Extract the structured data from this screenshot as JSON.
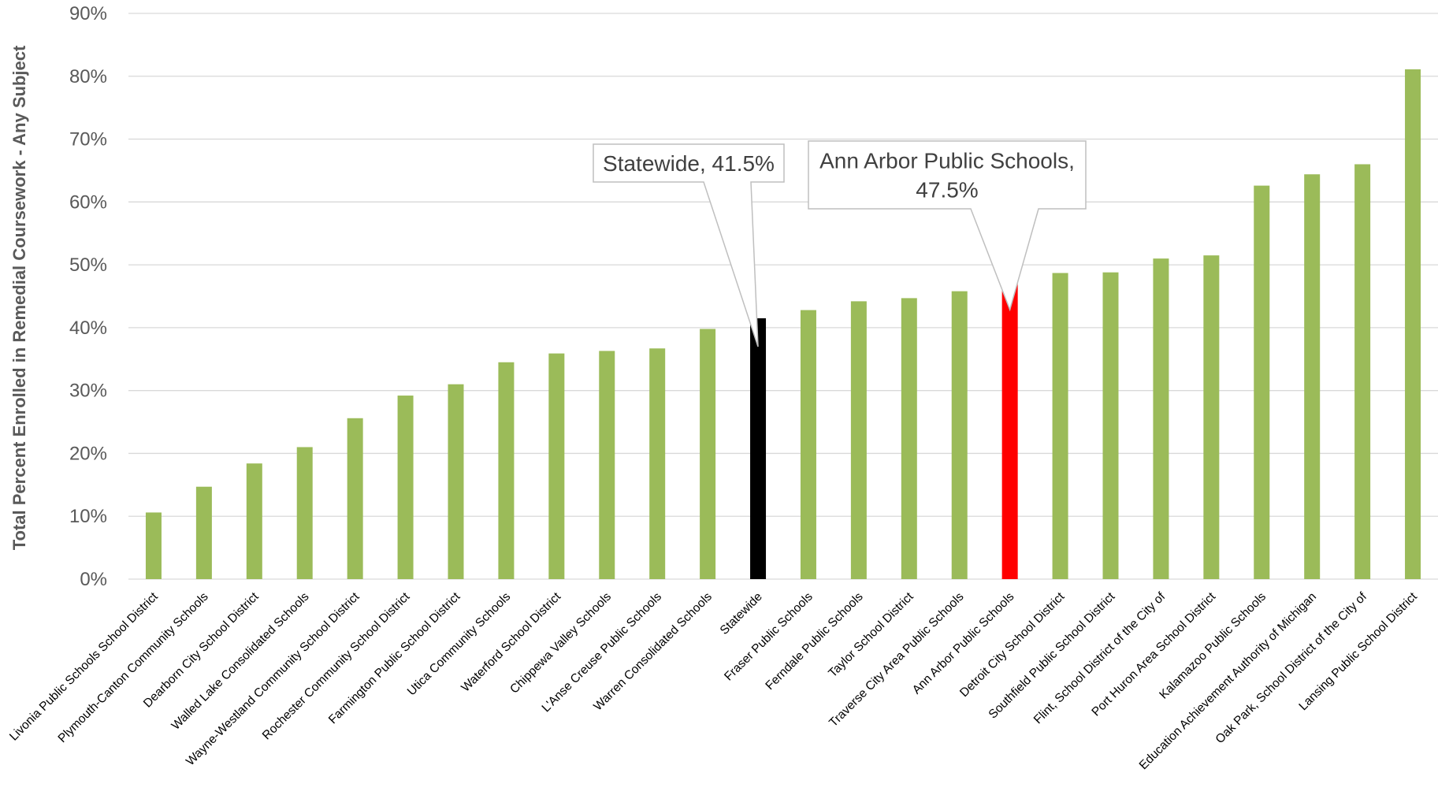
{
  "chart_data": {
    "type": "bar",
    "title": "",
    "xlabel": "",
    "ylabel": "Total Percent Enrolled in Remedial Coursework - Any Subject",
    "ylim": [
      0,
      90
    ],
    "yticks": [
      0,
      10,
      20,
      30,
      40,
      50,
      60,
      70,
      80,
      90
    ],
    "ytick_labels": [
      "0%",
      "10%",
      "20%",
      "30%",
      "40%",
      "50%",
      "60%",
      "70%",
      "80%",
      "90%"
    ],
    "grid": true,
    "legend": "none",
    "categories": [
      "Livonia Public Schools School District",
      "Plymouth-Canton Community Schools",
      "Dearborn City School District",
      "Walled Lake Consolidated Schools",
      "Wayne-Westland Community School District",
      "Rochester Community School District",
      "Farmington Public School District",
      "Utica Community Schools",
      "Waterford School District",
      "Chippewa Valley Schools",
      "L'Anse Creuse Public Schools",
      "Warren Consolidated Schools",
      "Statewide",
      "Fraser Public Schools",
      "Ferndale Public Schools",
      "Taylor School District",
      "Traverse City Area Public Schools",
      "Ann Arbor Public Schools",
      "Detroit City School District",
      "Southfield Public School District",
      "Flint, School District of the City of",
      "Port Huron Area School District",
      "Kalamazoo Public Schools",
      "Education Achievement Authority of Michigan",
      "Oak Park, School District of the City of",
      "Lansing Public School District"
    ],
    "values": [
      10.6,
      14.7,
      18.4,
      21.0,
      25.6,
      29.2,
      31.0,
      34.5,
      35.9,
      36.3,
      36.7,
      39.8,
      41.5,
      42.8,
      44.2,
      44.7,
      45.8,
      47.5,
      48.7,
      48.8,
      51.0,
      51.5,
      62.6,
      64.4,
      66.0,
      81.1
    ],
    "colors": {
      "default": "#9bbb59",
      "Statewide": "#000000",
      "Ann Arbor Public Schools": "#ff0000",
      "grid": "#d9d9d9",
      "axis_text": "#595959"
    },
    "annotations": [
      {
        "lines": [
          "Statewide, 41.5%"
        ],
        "target": "Statewide"
      },
      {
        "lines": [
          "Ann Arbor Public Schools,",
          "47.5%"
        ],
        "target": "Ann Arbor Public Schools"
      }
    ]
  }
}
